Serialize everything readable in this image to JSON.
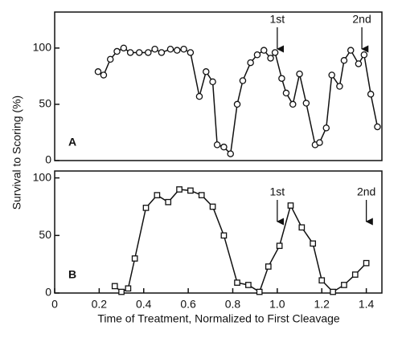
{
  "chart_data": [
    {
      "type": "line",
      "panel_label": "A",
      "ylabel": "Survival to Scoring (%)",
      "xlim": [
        0,
        1.47
      ],
      "ylim": [
        0,
        132
      ],
      "yticks": [
        0,
        50,
        100
      ],
      "marker": "circle",
      "color": "#111111",
      "x": [
        0.195,
        0.22,
        0.25,
        0.28,
        0.31,
        0.34,
        0.38,
        0.42,
        0.45,
        0.48,
        0.52,
        0.55,
        0.58,
        0.61,
        0.65,
        0.68,
        0.71,
        0.73,
        0.76,
        0.79,
        0.82,
        0.845,
        0.88,
        0.91,
        0.94,
        0.97,
        0.99,
        1.02,
        1.04,
        1.07,
        1.1,
        1.13,
        1.17,
        1.19,
        1.22,
        1.245,
        1.28,
        1.3,
        1.33,
        1.365,
        1.39,
        1.42,
        1.45
      ],
      "values": [
        79,
        76,
        90,
        97,
        100,
        96,
        96,
        96,
        99,
        96,
        99,
        98,
        99,
        96,
        57,
        79,
        70,
        14,
        12,
        6,
        50,
        71,
        87,
        94,
        98,
        91,
        96,
        73,
        60,
        50,
        77,
        51,
        14,
        16,
        29,
        76,
        66,
        89,
        98,
        86,
        94,
        59,
        30
      ],
      "annotations": [
        {
          "text": "1st",
          "x": 1.0
        },
        {
          "text": "2nd",
          "x": 1.38
        }
      ]
    },
    {
      "type": "line",
      "panel_label": "B",
      "xlabel": "Time of Treatment, Normalized to First Cleavage",
      "xlim": [
        0,
        1.47
      ],
      "ylim": [
        0,
        106
      ],
      "yticks": [
        0,
        50,
        100
      ],
      "marker": "square",
      "color": "#111111",
      "xticks": [
        0,
        0.2,
        0.4,
        0.6,
        0.8,
        {
          "value": 1,
          "label": "1.0"
        },
        1.2,
        1.4
      ],
      "x": [
        0.27,
        0.3,
        0.33,
        0.36,
        0.41,
        0.46,
        0.51,
        0.56,
        0.61,
        0.66,
        0.71,
        0.76,
        0.82,
        0.87,
        0.92,
        0.96,
        1.01,
        1.06,
        1.11,
        1.16,
        1.2,
        1.25,
        1.3,
        1.35,
        1.4
      ],
      "values": [
        6,
        1,
        4,
        30,
        74,
        85,
        79,
        90,
        89,
        85,
        75,
        50,
        9,
        7,
        1,
        23,
        41,
        76,
        57,
        43,
        11,
        1,
        7,
        16,
        26
      ],
      "annotations": [
        {
          "text": "1st",
          "x": 1.0
        },
        {
          "text": "2nd",
          "x": 1.4
        }
      ]
    }
  ]
}
